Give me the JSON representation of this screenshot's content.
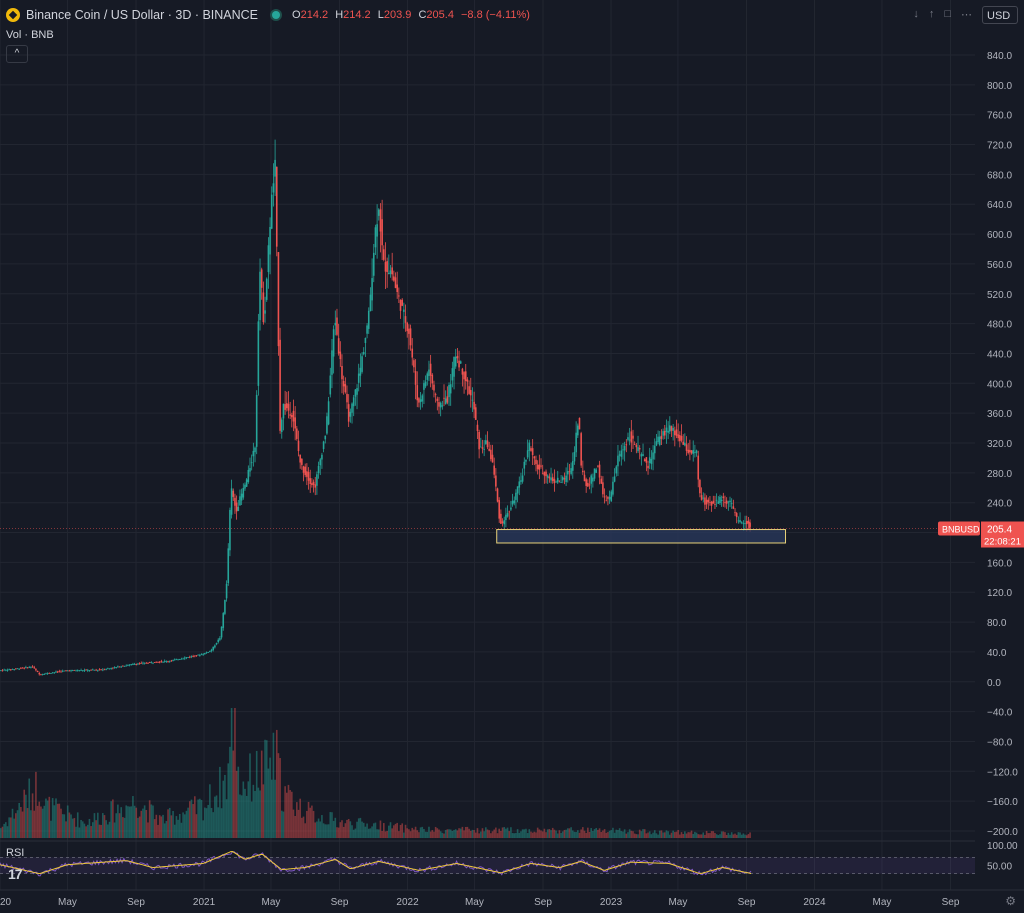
{
  "header": {
    "title": "Binance Coin / US Dollar · 3D · BINANCE",
    "ohlc": [
      {
        "label": "O",
        "value": "214.2"
      },
      {
        "label": "H",
        "value": "214.2"
      },
      {
        "label": "L",
        "value": "203.9"
      },
      {
        "label": "C",
        "value": "205.4"
      },
      {
        "label": "",
        "value": "−8.8 (−4.11%)"
      }
    ],
    "volume_label": "Vol · BNB",
    "currency": "USD"
  },
  "rsi_label": "RSI",
  "price_tag": {
    "symbol": "BNBUSD",
    "price": "205.4",
    "countdown": "22:08:21"
  },
  "colors": {
    "background": "#161a25",
    "up": "#26a69a",
    "down": "#ef5350",
    "grid": "#222631",
    "rsi": "#7e57c2",
    "rsi_ma": "#f0c93a",
    "zone_border": "#e8d27a",
    "zone_fill": "#2a3a5e"
  },
  "chart_data": {
    "type": "candlestick",
    "interval": "3D",
    "symbol": "BNBUSD",
    "yaxis": {
      "ticks": [
        840,
        800,
        760,
        720,
        680,
        640,
        600,
        560,
        520,
        480,
        440,
        400,
        360,
        320,
        280,
        240,
        200,
        160,
        120,
        80,
        40,
        0,
        -40,
        -80,
        -120,
        -160,
        -200
      ],
      "labels": [
        "840.0",
        "800.0",
        "760.0",
        "720.0",
        "680.0",
        "640.0",
        "600.0",
        "560.0",
        "520.0",
        "480.0",
        "440.0",
        "400.0",
        "360.0",
        "320.0",
        "280.0",
        "240.0",
        "",
        "160.0",
        "120.0",
        "80.0",
        "40.0",
        "0.0",
        "−40.0",
        "−80.0",
        "−120.0",
        "−160.0",
        "−200.0"
      ],
      "ylim": [
        -200,
        840
      ]
    },
    "xaxis": {
      "labels": [
        "2020",
        "May",
        "Sep",
        "2021",
        "May",
        "Sep",
        "2022",
        "May",
        "Sep",
        "2023",
        "May",
        "Sep",
        "2024",
        "May",
        "Sep"
      ],
      "dates": [
        "2020-01-01",
        "2020-05-01",
        "2020-09-01",
        "2021-01-01",
        "2021-05-01",
        "2021-09-01",
        "2022-01-01",
        "2022-05-01",
        "2022-09-01",
        "2023-01-01",
        "2023-05-01",
        "2023-09-01",
        "2024-01-01",
        "2024-05-01",
        "2024-09-01"
      ]
    },
    "price_path": [
      [
        "2020-01-01",
        15
      ],
      [
        "2020-03-01",
        20
      ],
      [
        "2020-03-13",
        10
      ],
      [
        "2020-05-01",
        15
      ],
      [
        "2020-07-01",
        16
      ],
      [
        "2020-09-01",
        24
      ],
      [
        "2020-11-01",
        28
      ],
      [
        "2020-12-31",
        37
      ],
      [
        "2021-01-15",
        42
      ],
      [
        "2021-02-01",
        60
      ],
      [
        "2021-02-12",
        130
      ],
      [
        "2021-02-20",
        260
      ],
      [
        "2021-03-01",
        230
      ],
      [
        "2021-03-20",
        270
      ],
      [
        "2021-04-05",
        320
      ],
      [
        "2021-04-12",
        560
      ],
      [
        "2021-04-20",
        480
      ],
      [
        "2021-05-03",
        640
      ],
      [
        "2021-05-10",
        690
      ],
      [
        "2021-05-19",
        340
      ],
      [
        "2021-05-25",
        370
      ],
      [
        "2021-06-10",
        360
      ],
      [
        "2021-06-25",
        290
      ],
      [
        "2021-07-20",
        260
      ],
      [
        "2021-08-10",
        340
      ],
      [
        "2021-08-25",
        490
      ],
      [
        "2021-09-07",
        410
      ],
      [
        "2021-09-20",
        350
      ],
      [
        "2021-10-10",
        420
      ],
      [
        "2021-10-25",
        490
      ],
      [
        "2021-11-05",
        600
      ],
      [
        "2021-11-12",
        640
      ],
      [
        "2021-11-20",
        560
      ],
      [
        "2021-12-05",
        550
      ],
      [
        "2021-12-15",
        520
      ],
      [
        "2022-01-05",
        470
      ],
      [
        "2022-01-22",
        370
      ],
      [
        "2022-02-10",
        420
      ],
      [
        "2022-02-25",
        370
      ],
      [
        "2022-03-15",
        380
      ],
      [
        "2022-03-30",
        440
      ],
      [
        "2022-04-15",
        410
      ],
      [
        "2022-05-01",
        370
      ],
      [
        "2022-05-12",
        310
      ],
      [
        "2022-05-25",
        320
      ],
      [
        "2022-06-05",
        290
      ],
      [
        "2022-06-18",
        210
      ],
      [
        "2022-07-05",
        230
      ],
      [
        "2022-07-25",
        270
      ],
      [
        "2022-08-08",
        320
      ],
      [
        "2022-08-20",
        290
      ],
      [
        "2022-09-05",
        280
      ],
      [
        "2022-09-20",
        270
      ],
      [
        "2022-10-10",
        270
      ],
      [
        "2022-10-25",
        290
      ],
      [
        "2022-11-06",
        360
      ],
      [
        "2022-11-09",
        290
      ],
      [
        "2022-11-20",
        260
      ],
      [
        "2022-12-10",
        290
      ],
      [
        "2022-12-20",
        245
      ],
      [
        "2023-01-01",
        245
      ],
      [
        "2023-01-15",
        300
      ],
      [
        "2023-02-05",
        330
      ],
      [
        "2023-02-20",
        310
      ],
      [
        "2023-03-10",
        290
      ],
      [
        "2023-03-25",
        320
      ],
      [
        "2023-04-15",
        340
      ],
      [
        "2023-05-01",
        330
      ],
      [
        "2023-05-20",
        310
      ],
      [
        "2023-06-05",
        305
      ],
      [
        "2023-06-10",
        250
      ],
      [
        "2023-06-20",
        240
      ],
      [
        "2023-07-05",
        240
      ],
      [
        "2023-07-20",
        245
      ],
      [
        "2023-08-05",
        240
      ],
      [
        "2023-08-17",
        215
      ],
      [
        "2023-08-30",
        215
      ],
      [
        "2023-09-05",
        214
      ],
      [
        "2023-09-11",
        205.4
      ]
    ],
    "last_candle": {
      "open": 214.2,
      "high": 214.2,
      "low": 203.9,
      "close": 205.4
    },
    "support_zone": {
      "start": "2022-06-10",
      "end": "2023-11-10",
      "bottom": 186,
      "top": 204
    },
    "volume": {
      "scale_max": 100,
      "path": [
        [
          "2020-01-01",
          8
        ],
        [
          "2020-03-12",
          42
        ],
        [
          "2020-03-20",
          25
        ],
        [
          "2020-06-01",
          12
        ],
        [
          "2020-09-01",
          28
        ],
        [
          "2020-10-15",
          14
        ],
        [
          "2021-01-01",
          25
        ],
        [
          "2021-02-10",
          45
        ],
        [
          "2021-02-22",
          100
        ],
        [
          "2021-03-05",
          40
        ],
        [
          "2021-05-10",
          60
        ],
        [
          "2021-05-20",
          35
        ],
        [
          "2021-07-01",
          20
        ],
        [
          "2021-09-01",
          12
        ],
        [
          "2021-11-01",
          10
        ],
        [
          "2022-02-01",
          6
        ],
        [
          "2022-06-01",
          6
        ],
        [
          "2022-11-08",
          6
        ],
        [
          "2023-06-10",
          4
        ],
        [
          "2023-09-11",
          3
        ]
      ]
    },
    "rsi": {
      "ylim": [
        0,
        100
      ],
      "ticks": [
        "100.00",
        "50.00"
      ],
      "path": [
        [
          "2020-01-01",
          52
        ],
        [
          "2020-03-12",
          30
        ],
        [
          "2020-05-01",
          52
        ],
        [
          "2020-08-15",
          62
        ],
        [
          "2020-10-01",
          45
        ],
        [
          "2020-12-31",
          55
        ],
        [
          "2021-02-20",
          85
        ],
        [
          "2021-03-15",
          65
        ],
        [
          "2021-04-15",
          78
        ],
        [
          "2021-05-20",
          40
        ],
        [
          "2021-07-01",
          45
        ],
        [
          "2021-08-25",
          65
        ],
        [
          "2021-09-20",
          42
        ],
        [
          "2021-11-10",
          60
        ],
        [
          "2022-01-22",
          38
        ],
        [
          "2022-03-30",
          55
        ],
        [
          "2022-06-18",
          32
        ],
        [
          "2022-08-10",
          55
        ],
        [
          "2022-10-01",
          45
        ],
        [
          "2022-11-08",
          60
        ],
        [
          "2022-12-20",
          38
        ],
        [
          "2023-02-05",
          58
        ],
        [
          "2023-04-15",
          55
        ],
        [
          "2023-06-10",
          30
        ],
        [
          "2023-07-20",
          45
        ],
        [
          "2023-09-11",
          30
        ]
      ]
    }
  },
  "footer": {
    "tv_logo": "17"
  }
}
